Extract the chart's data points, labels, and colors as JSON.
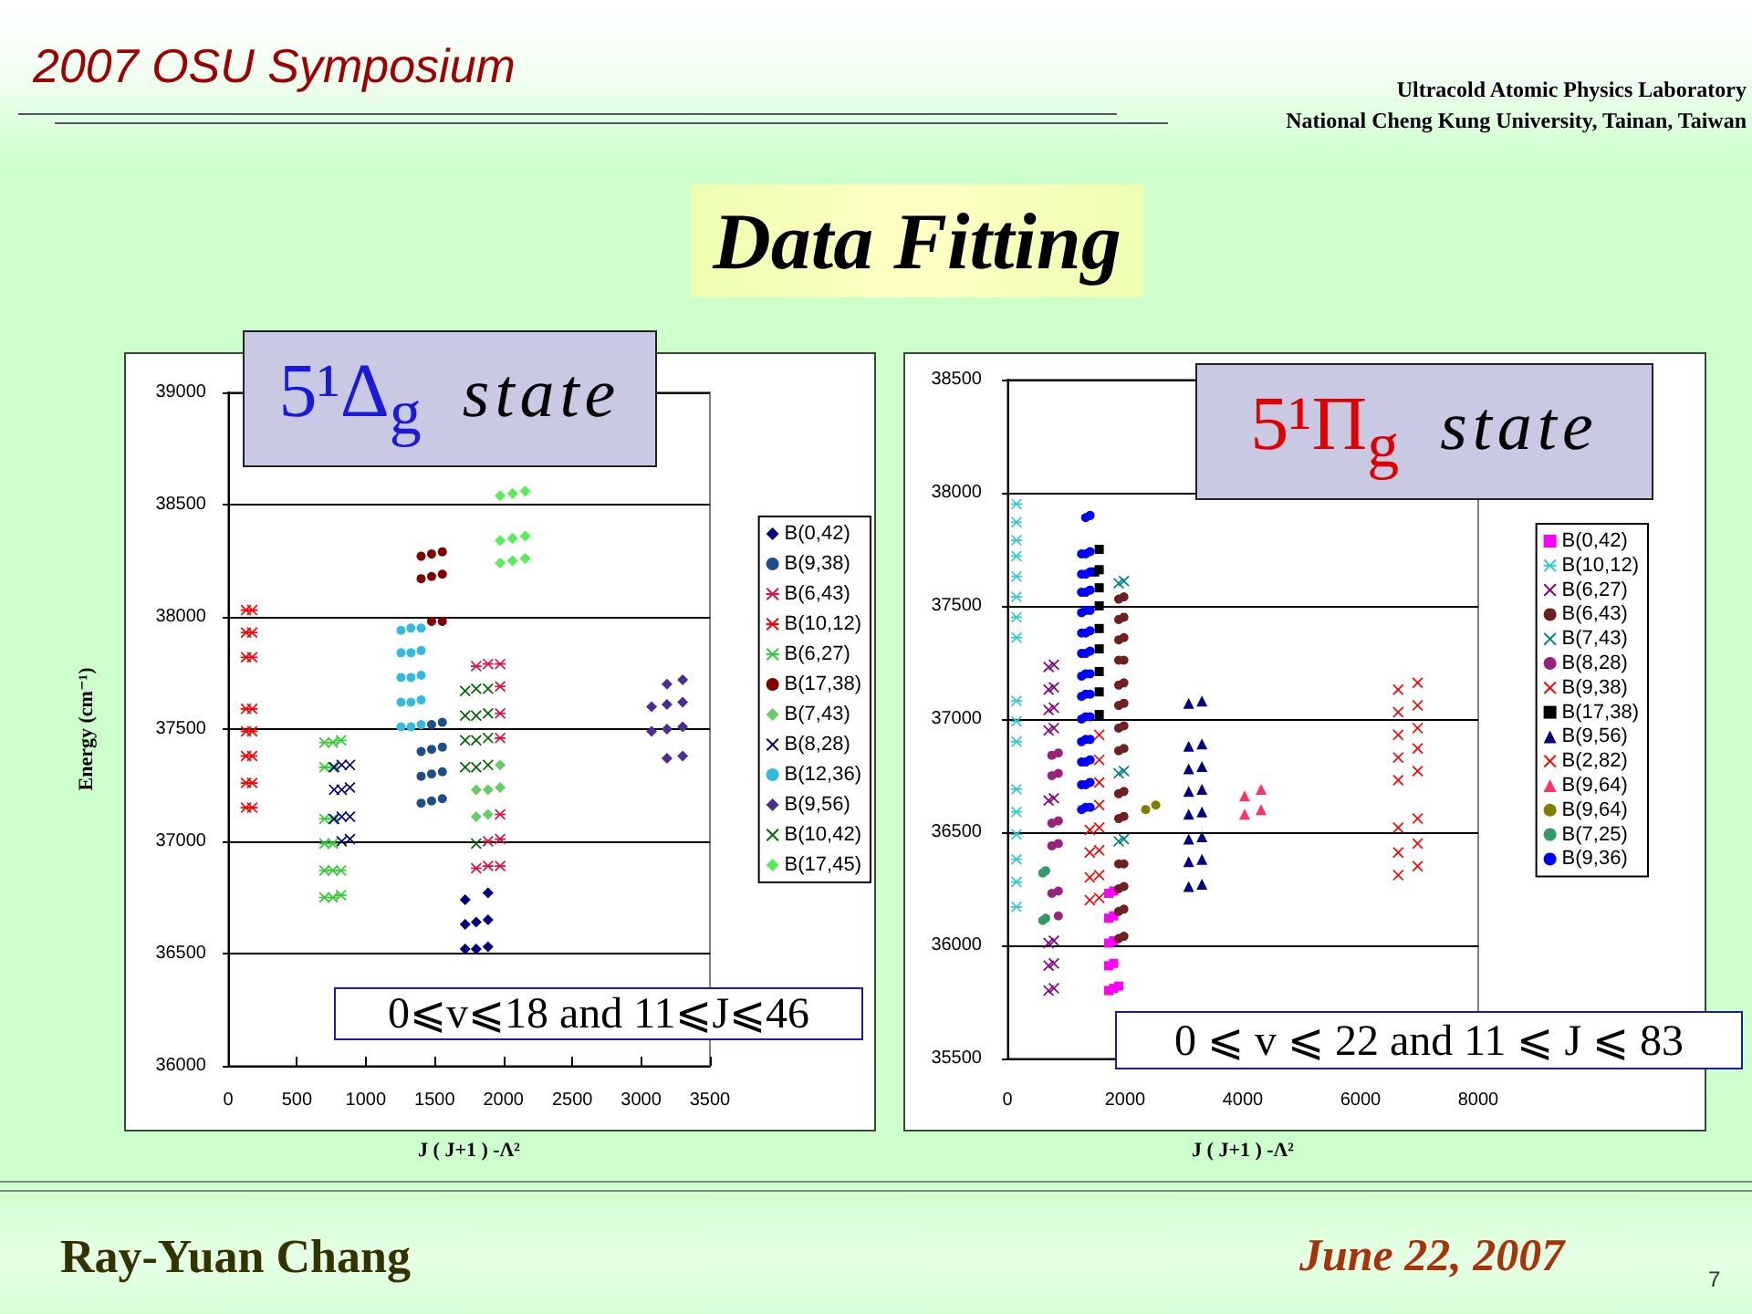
{
  "chart_data": [
    {
      "type": "scatter",
      "title": "5¹Δ$_{g}$ state",
      "xlabel": "J ( J+1 ) -Λ²",
      "ylabel": "Energy (cm⁻¹)",
      "xlim": [
        0,
        3500
      ],
      "xticks": [
        0,
        500,
        1000,
        1500,
        2000,
        2500,
        3000,
        3500
      ],
      "ylim": [
        36000,
        39000
      ],
      "yticks": [
        36000,
        36500,
        37000,
        37500,
        38000,
        38500,
        39000
      ],
      "grid": "y",
      "legend": "right",
      "annotations": [
        "0⩽v⩽18 and 11⩽J⩽46"
      ],
      "series": [
        {
          "name": "B(0,42)",
          "color": "#000080",
          "marker": "diamond",
          "x": [
            1722,
            1888,
            1722,
            1802,
            1888,
            1722,
            1802,
            1888
          ],
          "values": [
            36740,
            36770,
            36630,
            36640,
            36650,
            36520,
            36520,
            36530
          ]
        },
        {
          "name": "B(9,38)",
          "color": "#1f4e8c",
          "marker": "circle",
          "x": [
            1478,
            1556,
            1402,
            1478,
            1556,
            1402,
            1478,
            1556,
            1402,
            1478,
            1556
          ],
          "values": [
            37520,
            37530,
            37400,
            37410,
            37420,
            37290,
            37300,
            37310,
            37170,
            37180,
            37190
          ]
        },
        {
          "name": "B(6,43)",
          "color": "#e0103a",
          "marker": "star",
          "x": [
            1802,
            1888,
            1976,
            1976,
            1976,
            1976,
            1976,
            1888,
            1976,
            1802,
            1888,
            1976
          ],
          "values": [
            37780,
            37790,
            37790,
            37690,
            37570,
            37460,
            37120,
            37000,
            37010,
            36880,
            36890,
            36890
          ]
        },
        {
          "name": "B(10,12)",
          "color": "#ff0000",
          "marker": "star",
          "x": [
            130,
            175,
            130,
            175,
            130,
            175,
            130,
            175,
            130,
            175,
            130,
            175,
            130,
            175,
            130,
            175
          ],
          "values": [
            38030,
            38030,
            37930,
            37930,
            37820,
            37820,
            37590,
            37590,
            37490,
            37490,
            37380,
            37380,
            37260,
            37260,
            37150,
            37150
          ]
        },
        {
          "name": "B(6,27)",
          "color": "#33cc33",
          "marker": "star",
          "x": [
            700,
            760,
            820,
            700,
            760,
            700,
            760,
            700,
            760,
            700,
            760,
            820,
            700,
            760,
            820
          ],
          "values": [
            37440,
            37440,
            37450,
            37330,
            37330,
            37100,
            37100,
            36990,
            36990,
            36870,
            36870,
            36870,
            36750,
            36750,
            36760
          ]
        },
        {
          "name": "B(17,38)",
          "color": "#800000",
          "marker": "circle",
          "x": [
            1402,
            1478,
            1556,
            1402,
            1478,
            1556,
            1478,
            1556
          ],
          "values": [
            38270,
            38280,
            38290,
            38170,
            38180,
            38190,
            37980,
            37980
          ]
        },
        {
          "name": "B(7,43)",
          "color": "#66cc66",
          "marker": "diamond",
          "x": [
            1976,
            1802,
            1888,
            1976,
            1802,
            1888
          ],
          "values": [
            37340,
            37230,
            37230,
            37240,
            37110,
            37120
          ]
        },
        {
          "name": "B(8,28)",
          "color": "#000080",
          "marker": "cross",
          "x": [
            770,
            825,
            885,
            770,
            825,
            885,
            770,
            825,
            885,
            825,
            885
          ],
          "values": [
            37330,
            37340,
            37340,
            37230,
            37230,
            37240,
            37100,
            37110,
            37110,
            37000,
            37010
          ]
        },
        {
          "name": "B(12,36)",
          "color": "#33bbdd",
          "marker": "circle",
          "x": [
            1256,
            1328,
            1402,
            1256,
            1328,
            1402,
            1256,
            1328,
            1402,
            1256,
            1328,
            1402,
            1256,
            1328,
            1402
          ],
          "values": [
            37940,
            37950,
            37950,
            37840,
            37840,
            37850,
            37730,
            37730,
            37740,
            37620,
            37620,
            37630,
            37510,
            37510,
            37520
          ]
        },
        {
          "name": "B(9,56)",
          "color": "#4b2d8f",
          "marker": "diamond",
          "x": [
            3188,
            3302,
            3076,
            3188,
            3302,
            3076,
            3188,
            3302,
            3188,
            3302
          ],
          "values": [
            37700,
            37720,
            37600,
            37610,
            37620,
            37490,
            37500,
            37510,
            37370,
            37380
          ]
        },
        {
          "name": "B(10,42)",
          "color": "#006600",
          "marker": "cross",
          "x": [
            1722,
            1802,
            1888,
            1722,
            1802,
            1888,
            1722,
            1802,
            1888,
            1722,
            1802,
            1888,
            1802
          ],
          "values": [
            37670,
            37680,
            37680,
            37560,
            37560,
            37570,
            37450,
            37450,
            37460,
            37330,
            37330,
            37340,
            36990
          ]
        },
        {
          "name": "B(17,45)",
          "color": "#55ee55",
          "marker": "diamond",
          "x": [
            1976,
            2066,
            2158,
            1976,
            2066,
            2158,
            1976,
            2066,
            2158
          ],
          "values": [
            38540,
            38550,
            38560,
            38340,
            38350,
            38360,
            38240,
            38250,
            38260
          ]
        }
      ]
    },
    {
      "type": "scatter",
      "title": "5¹Π$_{g}$ state",
      "xlabel": "J ( J+1 ) -Λ²",
      "xlim": [
        0,
        8000
      ],
      "xticks": [
        0,
        2000,
        4000,
        6000,
        8000
      ],
      "ylim": [
        35500,
        38500
      ],
      "yticks": [
        35500,
        36000,
        36500,
        37000,
        37500,
        38000,
        38500
      ],
      "grid": "y",
      "legend": "right",
      "annotations": [
        "0 ⩽ v ⩽ 22 and 11 ⩽ J ⩽ 83"
      ],
      "series": [
        {
          "name": "B(0,42)",
          "color": "#ff00ff",
          "marker": "square",
          "x": [
            1721,
            1805,
            1721,
            1805,
            1721,
            1805,
            1721,
            1805,
            1721,
            1805,
            1891
          ],
          "values": [
            36230,
            36240,
            36120,
            36130,
            36010,
            36020,
            35910,
            35920,
            35800,
            35810,
            35820
          ]
        },
        {
          "name": "B(10,12)",
          "color": "#33cccc",
          "marker": "star",
          "x": [
            155,
            155,
            155,
            155,
            155,
            155,
            155,
            155,
            155,
            155,
            155,
            155,
            155,
            155,
            155,
            155,
            155
          ],
          "values": [
            37950,
            37870,
            37790,
            37720,
            37630,
            37540,
            37450,
            37360,
            37080,
            36990,
            36900,
            36690,
            36590,
            36490,
            36380,
            36280,
            36170
          ]
        },
        {
          "name": "B(6,27)",
          "color": "#800080",
          "marker": "cross",
          "x": [
            700,
            790,
            700,
            790,
            700,
            790,
            700,
            790,
            700,
            790,
            700,
            790,
            700,
            790,
            700,
            790
          ],
          "values": [
            37230,
            37240,
            37130,
            37140,
            37040,
            37050,
            36950,
            36960,
            36640,
            36650,
            36010,
            36020,
            35910,
            35920,
            35800,
            35810
          ]
        },
        {
          "name": "B(6,43)",
          "color": "#6e1f1f",
          "marker": "circle",
          "x": [
            1891,
            1979,
            1891,
            1979,
            1891,
            1979,
            1891,
            1979,
            1891,
            1979,
            1891,
            1979,
            1891,
            1979,
            1891,
            1979,
            1891,
            1979,
            1891,
            1979,
            1891,
            1979,
            1891,
            1979,
            1891,
            1979,
            1891,
            1979
          ],
          "values": [
            37530,
            37540,
            37440,
            37450,
            37350,
            37360,
            37260,
            37260,
            37150,
            37160,
            37060,
            37070,
            36960,
            36970,
            36860,
            36870,
            36670,
            36680,
            36560,
            36570,
            36360,
            36360,
            36250,
            36260,
            36150,
            36160,
            36030,
            36040
          ]
        },
        {
          "name": "B(7,43)",
          "color": "#008080",
          "marker": "cross",
          "x": [
            1891,
            1979,
            1891,
            1979,
            1891,
            1979
          ],
          "values": [
            37600,
            37610,
            36760,
            36770,
            36460,
            36470
          ]
        },
        {
          "name": "B(8,28)",
          "color": "#99227a",
          "marker": "circle",
          "x": [
            755,
            865,
            755,
            865,
            755,
            865,
            755,
            865,
            755,
            865,
            865
          ],
          "values": [
            36840,
            36850,
            36750,
            36760,
            36540,
            36550,
            36440,
            36450,
            36230,
            36240,
            36130
          ]
        },
        {
          "name": "B(9,38)",
          "color": "#ff0000",
          "marker": "cross",
          "x": [
            1560,
            1560,
            1560,
            1560,
            1400,
            1560,
            1400,
            1560,
            1400,
            1560,
            1400,
            1560
          ],
          "values": [
            36930,
            36820,
            36720,
            36620,
            36510,
            36520,
            36410,
            36420,
            36300,
            36310,
            36200,
            36210
          ]
        },
        {
          "name": "B(17,38)",
          "color": "#000000",
          "marker": "square",
          "x": [
            1560,
            1480,
            1560,
            1560,
            1560,
            1560,
            1560,
            1560,
            1560,
            1560
          ],
          "values": [
            37750,
            37650,
            37660,
            37580,
            37500,
            37400,
            37310,
            37210,
            37120,
            37020
          ]
        },
        {
          "name": "B(9,56)",
          "color": "#000080",
          "marker": "triangle",
          "x": [
            3080,
            3305,
            3080,
            3305,
            3080,
            3305,
            3080,
            3305,
            3080,
            3305,
            3080,
            3305,
            3080,
            3305,
            3080,
            3305
          ],
          "values": [
            37070,
            37080,
            36880,
            36890,
            36780,
            36790,
            36680,
            36690,
            36580,
            36590,
            36470,
            36480,
            36370,
            36380,
            36260,
            36270
          ]
        },
        {
          "name": "B(2,82)",
          "color": "#ff0000",
          "marker": "cross",
          "x": [
            6640,
            6970,
            6640,
            6970,
            6640,
            6970,
            6640,
            6970,
            6640,
            6970,
            6640,
            6970,
            6640,
            6970,
            6640,
            6970
          ],
          "values": [
            37130,
            37160,
            37030,
            37060,
            36930,
            36960,
            36830,
            36870,
            36730,
            36770,
            36520,
            36560,
            36410,
            36450,
            36310,
            36350
          ]
        },
        {
          "name": "B(9,64)",
          "color": "#ff3366",
          "marker": "triangle",
          "x": [
            4030,
            4310,
            4030,
            4310
          ],
          "values": [
            36660,
            36690,
            36580,
            36600
          ]
        },
        {
          "name": "B(9,64)",
          "color": "#808000",
          "marker": "circle",
          "x": [
            2350,
            2520
          ],
          "values": [
            36600,
            36620
          ]
        },
        {
          "name": "B(7,25)",
          "color": "#339966",
          "marker": "circle",
          "x": [
            600,
            650,
            600,
            650
          ],
          "values": [
            36320,
            36330,
            36110,
            36120
          ]
        },
        {
          "name": "B(9,36)",
          "color": "#0000ff",
          "marker": "circle",
          "x": [
            1330,
            1405,
            1260,
            1330,
            1405,
            1260,
            1330,
            1405,
            1260,
            1330,
            1405,
            1260,
            1330,
            1405,
            1260,
            1330,
            1405,
            1260,
            1330,
            1405,
            1260,
            1330,
            1405,
            1260,
            1330,
            1405,
            1260,
            1330,
            1405,
            1260,
            1330,
            1405,
            1260,
            1330,
            1405,
            1260,
            1330,
            1405,
            1260,
            1330,
            1405
          ],
          "values": [
            37890,
            37900,
            37730,
            37730,
            37740,
            37640,
            37640,
            37650,
            37560,
            37560,
            37570,
            37470,
            37480,
            37480,
            37380,
            37380,
            37390,
            37290,
            37290,
            37300,
            37190,
            37200,
            37200,
            37100,
            37110,
            37110,
            37000,
            37010,
            37010,
            36900,
            36910,
            36910,
            36810,
            36810,
            36820,
            36710,
            36710,
            36720,
            36600,
            36610,
            36610
          ]
        }
      ]
    },
    {
      "type": "other",
      "title": "Data Fitting",
      "annotations": [
        "2007 OSU Symposium",
        "Ultracold Atomic Physics Laboratory",
        "National Cheng Kung University, Tainan, Taiwan",
        "Ray-Yuan Chang",
        "June 22, 2007",
        "7"
      ]
    }
  ]
}
